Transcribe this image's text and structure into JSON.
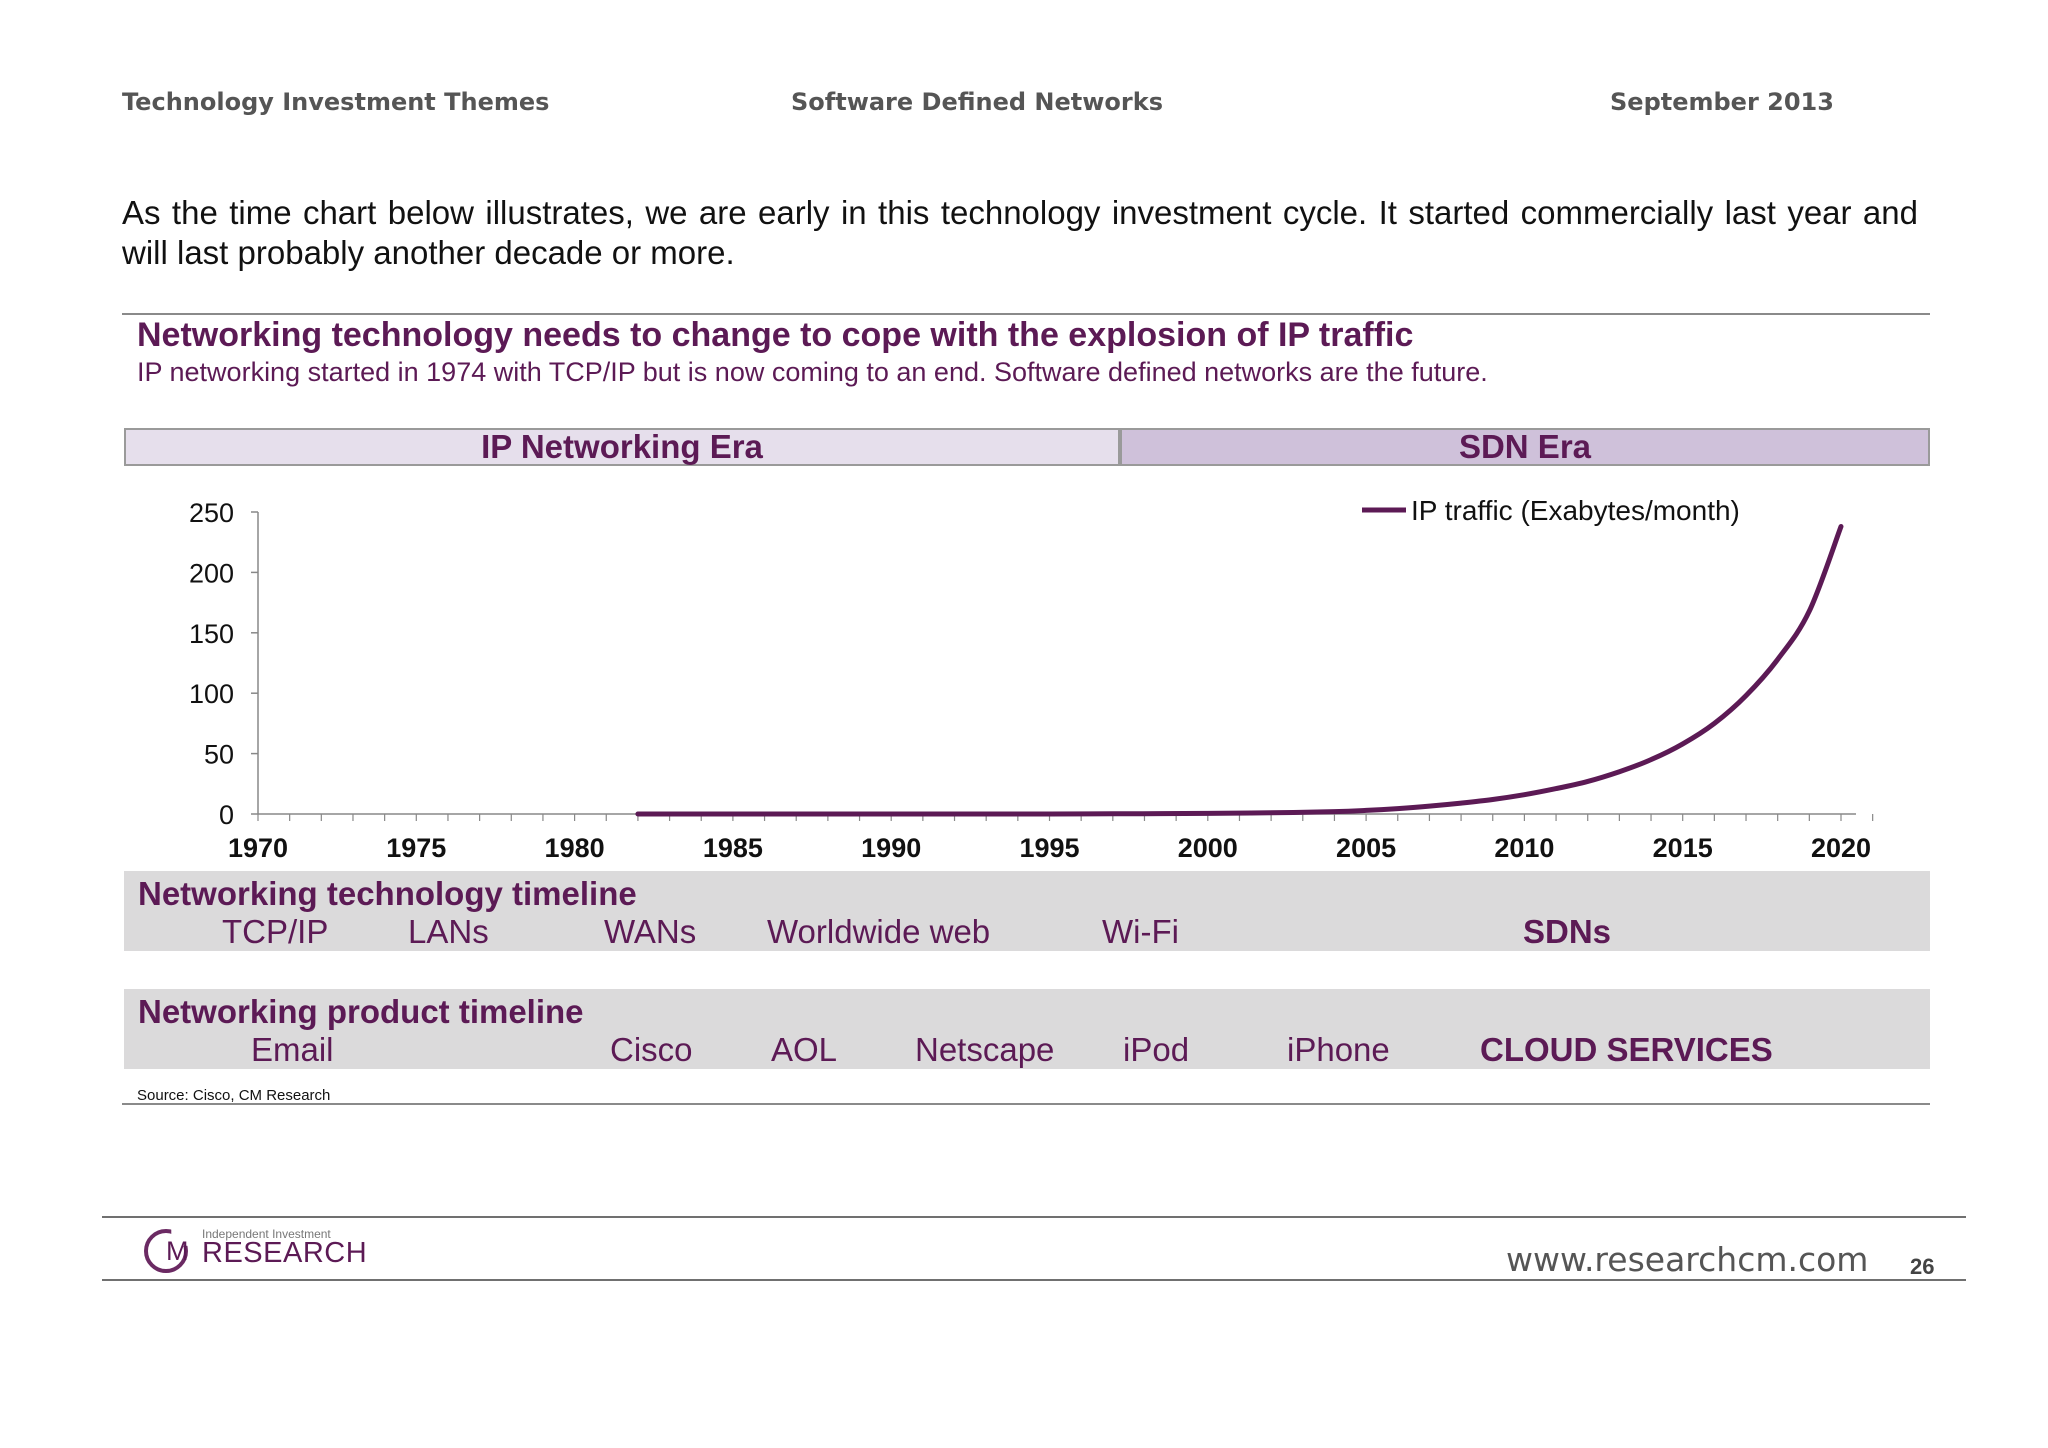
{
  "header": {
    "left": "Technology Investment Themes",
    "center": "Software Defined Networks",
    "right": "September 2013"
  },
  "intro": "As the time chart below illustrates, we are early in this technology investment cycle. It started commercially last year and will last probably another decade or more.",
  "chart_block": {
    "title": "Networking technology needs to change to cope with the explosion of IP traffic",
    "subtitle": "IP networking started in 1974 with TCP/IP but is now coming to an end. Software defined networks are the future.",
    "era_ip": "IP Networking Era",
    "era_sdn": "SDN Era",
    "source": "Source:  Cisco, CM Research"
  },
  "chart_data": {
    "type": "line",
    "title": "",
    "xlabel": "",
    "ylabel": "",
    "xlim": [
      1970,
      2020
    ],
    "ylim": [
      0,
      250
    ],
    "yticks": [
      0,
      50,
      100,
      150,
      200,
      250
    ],
    "xtick_labels": [
      "1970",
      "1975",
      "1980",
      "1985",
      "1990",
      "1995",
      "2000",
      "2005",
      "2010",
      "2015",
      "2020"
    ],
    "grid": false,
    "legend": "top-right",
    "series": [
      {
        "name": "IP traffic (Exabytes/month)",
        "color": "#5c1a55",
        "x": [
          1982,
          1985,
          1990,
          1995,
          1997,
          2000,
          2002,
          2004,
          2005,
          2006,
          2007,
          2008,
          2009,
          2010,
          2011,
          2012,
          2013,
          2014,
          2015,
          2016,
          2017,
          2018,
          2019,
          2020
        ],
        "y": [
          0,
          0,
          0,
          0,
          0.2,
          0.5,
          1,
          2,
          3,
          4.5,
          6.5,
          9,
          12,
          16,
          21,
          27,
          35,
          45,
          58,
          75,
          98,
          128,
          168,
          238
        ]
      }
    ]
  },
  "tech_timeline": {
    "title": "Networking technology timeline",
    "items": [
      "TCP/IP",
      "LANs",
      "WANs",
      "Worldwide web",
      "Wi-Fi",
      "SDNs"
    ]
  },
  "product_timeline": {
    "title": "Networking product timeline",
    "items": [
      "Email",
      "Cisco",
      "AOL",
      "Netscape",
      "iPod",
      "iPhone",
      "CLOUD SERVICES"
    ]
  },
  "footer": {
    "logo_letter": "M",
    "logo_small": "Independent Investment",
    "logo_big": "RESEARCH",
    "url": "www.researchcm.com",
    "page": "26"
  }
}
